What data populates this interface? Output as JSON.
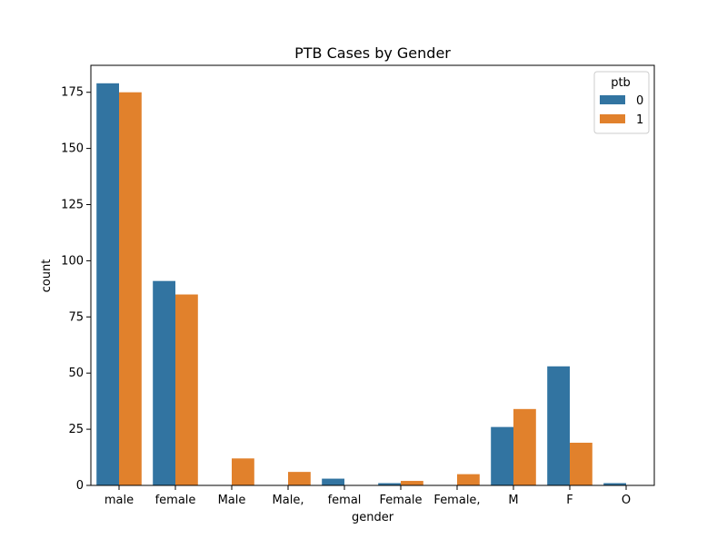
{
  "chart_data": {
    "type": "bar",
    "title": "PTB Cases by Gender",
    "xlabel": "gender",
    "ylabel": "count",
    "ylim": [
      0,
      187
    ],
    "yticks": [
      0,
      25,
      50,
      75,
      100,
      125,
      150,
      175
    ],
    "categories": [
      "male",
      "female",
      "Male",
      "Male,",
      "femal",
      "Female",
      "Female,",
      "M",
      "F",
      "O"
    ],
    "series": [
      {
        "name": "0",
        "color": "#3274a1",
        "values": [
          179,
          91,
          0,
          0,
          3,
          1,
          0,
          26,
          53,
          1
        ]
      },
      {
        "name": "1",
        "color": "#e1812c",
        "values": [
          175,
          85,
          12,
          6,
          0,
          2,
          5,
          34,
          19,
          0
        ]
      }
    ],
    "legend": {
      "title": "ptb",
      "placement": "top-right"
    },
    "grid": false
  }
}
